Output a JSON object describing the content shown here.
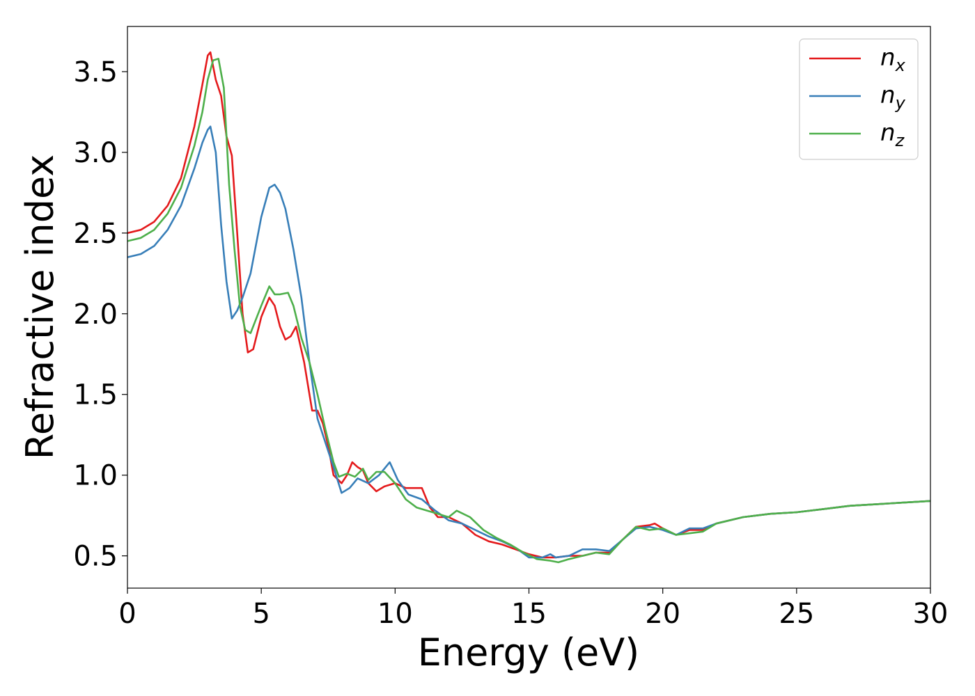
{
  "chart_data": {
    "type": "line",
    "title": "",
    "xlabel": "Energy (eV)",
    "ylabel": "Refractive index",
    "xlim": [
      0,
      30
    ],
    "ylim": [
      0.3,
      3.78
    ],
    "xticks": [
      0,
      5,
      10,
      15,
      20,
      25,
      30
    ],
    "yticks": [
      0.5,
      1.0,
      1.5,
      2.0,
      2.5,
      3.0,
      3.5
    ],
    "xtick_labels": [
      "0",
      "5",
      "10",
      "15",
      "20",
      "25",
      "30"
    ],
    "ytick_labels": [
      "0.5",
      "1.0",
      "1.5",
      "2.0",
      "2.5",
      "3.0",
      "3.5"
    ],
    "grid": false,
    "legend_position": "top-right",
    "series": [
      {
        "name": "n",
        "subscript": "x",
        "color": "#e41a1c",
        "x": [
          0,
          0.5,
          1,
          1.5,
          2,
          2.5,
          2.8,
          3.0,
          3.1,
          3.3,
          3.5,
          3.7,
          3.9,
          4.1,
          4.3,
          4.5,
          4.7,
          5.0,
          5.3,
          5.5,
          5.7,
          5.9,
          6.1,
          6.3,
          6.6,
          6.9,
          7.1,
          7.3,
          7.5,
          7.7,
          8.0,
          8.2,
          8.4,
          8.6,
          8.8,
          9.0,
          9.3,
          9.6,
          10.0,
          10.4,
          10.8,
          11.0,
          11.3,
          11.6,
          12.0,
          12.5,
          13.0,
          13.5,
          14.0,
          14.5,
          15.0,
          15.5,
          16.0,
          16.5,
          17.0,
          17.5,
          18.0,
          18.5,
          19.0,
          19.5,
          19.7,
          20.0,
          20.5,
          21.0,
          21.5,
          22.0,
          23.0,
          24.0,
          25.0,
          26.0,
          27.0,
          28.0,
          29.0,
          30.0
        ],
        "y": [
          2.5,
          2.52,
          2.57,
          2.67,
          2.84,
          3.16,
          3.42,
          3.6,
          3.62,
          3.45,
          3.35,
          3.1,
          2.98,
          2.5,
          2.0,
          1.76,
          1.78,
          1.98,
          2.1,
          2.05,
          1.92,
          1.84,
          1.86,
          1.92,
          1.7,
          1.4,
          1.4,
          1.32,
          1.18,
          1.0,
          0.95,
          1.0,
          1.08,
          1.05,
          1.03,
          0.95,
          0.9,
          0.93,
          0.95,
          0.92,
          0.92,
          0.92,
          0.8,
          0.74,
          0.74,
          0.7,
          0.63,
          0.59,
          0.57,
          0.54,
          0.51,
          0.49,
          0.49,
          0.5,
          0.5,
          0.52,
          0.52,
          0.6,
          0.68,
          0.69,
          0.7,
          0.67,
          0.63,
          0.66,
          0.66,
          0.7,
          0.74,
          0.76,
          0.77,
          0.79,
          0.81,
          0.82,
          0.83,
          0.84
        ]
      },
      {
        "name": "n",
        "subscript": "y",
        "color": "#377eb8",
        "x": [
          0,
          0.5,
          1,
          1.5,
          2,
          2.5,
          2.8,
          3.0,
          3.1,
          3.3,
          3.5,
          3.7,
          3.9,
          4.1,
          4.3,
          4.6,
          5.0,
          5.3,
          5.5,
          5.7,
          5.9,
          6.2,
          6.5,
          6.8,
          7.1,
          7.4,
          7.7,
          8.0,
          8.3,
          8.6,
          9.0,
          9.4,
          9.8,
          10.1,
          10.5,
          11.0,
          11.5,
          12.0,
          12.5,
          13.0,
          13.5,
          14.0,
          14.5,
          15.0,
          15.5,
          15.8,
          16.0,
          16.5,
          17.0,
          17.5,
          18.0,
          18.5,
          19.0,
          19.5,
          20.0,
          20.5,
          21.0,
          21.5,
          22.0,
          23.0,
          24.0,
          25.0,
          26.0,
          27.0,
          28.0,
          29.0,
          30.0
        ],
        "y": [
          2.35,
          2.37,
          2.42,
          2.52,
          2.67,
          2.9,
          3.06,
          3.14,
          3.16,
          3.0,
          2.55,
          2.2,
          1.97,
          2.02,
          2.1,
          2.25,
          2.6,
          2.78,
          2.8,
          2.75,
          2.65,
          2.4,
          2.1,
          1.7,
          1.35,
          1.2,
          1.05,
          0.89,
          0.92,
          0.98,
          0.95,
          1.0,
          1.08,
          0.97,
          0.88,
          0.85,
          0.78,
          0.72,
          0.7,
          0.66,
          0.62,
          0.59,
          0.55,
          0.49,
          0.49,
          0.51,
          0.49,
          0.5,
          0.54,
          0.54,
          0.53,
          0.6,
          0.67,
          0.68,
          0.66,
          0.63,
          0.67,
          0.67,
          0.7,
          0.74,
          0.76,
          0.77,
          0.79,
          0.81,
          0.82,
          0.83,
          0.84
        ]
      },
      {
        "name": "n",
        "subscript": "z",
        "color": "#4daf4a",
        "x": [
          0,
          0.5,
          1,
          1.5,
          2,
          2.5,
          2.8,
          3.0,
          3.2,
          3.4,
          3.6,
          3.8,
          4.0,
          4.2,
          4.4,
          4.6,
          5.0,
          5.3,
          5.5,
          5.7,
          6.0,
          6.2,
          6.5,
          6.8,
          7.1,
          7.4,
          7.7,
          7.9,
          8.2,
          8.5,
          8.8,
          9.0,
          9.3,
          9.6,
          10.0,
          10.4,
          10.8,
          11.2,
          11.6,
          12.0,
          12.3,
          12.8,
          13.3,
          13.8,
          14.3,
          14.8,
          15.3,
          15.8,
          16.1,
          16.5,
          17.0,
          17.5,
          18.0,
          18.5,
          19.0,
          19.5,
          20.0,
          20.5,
          21.0,
          21.5,
          22.0,
          23.0,
          24.0,
          25.0,
          26.0,
          27.0,
          28.0,
          29.0,
          30.0
        ],
        "y": [
          2.45,
          2.47,
          2.52,
          2.62,
          2.78,
          3.04,
          3.25,
          3.45,
          3.57,
          3.58,
          3.4,
          2.8,
          2.4,
          2.05,
          1.9,
          1.88,
          2.05,
          2.17,
          2.12,
          2.12,
          2.13,
          2.05,
          1.85,
          1.7,
          1.5,
          1.28,
          1.08,
          0.99,
          1.01,
          0.99,
          1.04,
          0.97,
          1.02,
          1.02,
          0.95,
          0.85,
          0.8,
          0.78,
          0.76,
          0.74,
          0.78,
          0.74,
          0.66,
          0.61,
          0.57,
          0.52,
          0.48,
          0.47,
          0.46,
          0.48,
          0.5,
          0.52,
          0.51,
          0.6,
          0.68,
          0.66,
          0.67,
          0.63,
          0.64,
          0.65,
          0.7,
          0.74,
          0.76,
          0.77,
          0.79,
          0.81,
          0.82,
          0.83,
          0.84
        ]
      }
    ]
  }
}
